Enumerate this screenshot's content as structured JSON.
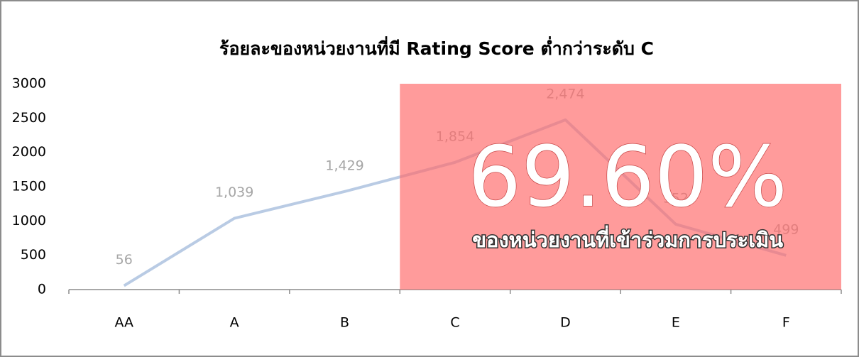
{
  "chart_data": {
    "type": "line",
    "title": "ร้อยละของหน่วยงานที่มี Rating Score ต่ำกว่าระดับ C",
    "categories": [
      "AA",
      "A",
      "B",
      "C",
      "D",
      "E",
      "F"
    ],
    "series": [
      {
        "name": "จำนวนหน่วยงาน",
        "color": "#b9cbe4",
        "values": [
          56,
          1039,
          1429,
          1854,
          2474,
          952,
          499
        ],
        "value_labels": [
          "56",
          "1,039",
          "1,429",
          "1,854",
          "2,474",
          "952",
          "499"
        ]
      }
    ],
    "ylim": [
      0,
      3000
    ],
    "yticks": [
      0,
      500,
      1000,
      1500,
      2000,
      2500,
      3000
    ],
    "annotations": [
      "69.60%",
      "ของหน่วยงานที่เข้าร่วมการประเมิน"
    ]
  }
}
